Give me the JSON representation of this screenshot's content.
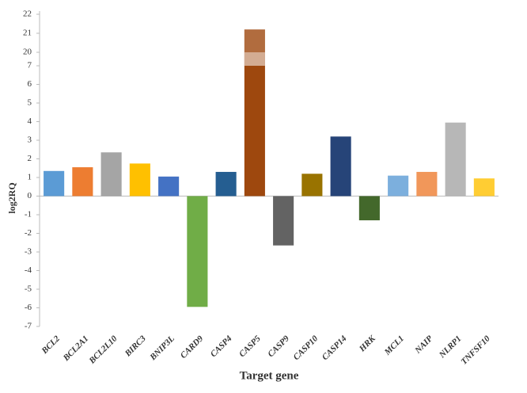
{
  "chart_data": {
    "type": "bar",
    "x_label": "Target gene",
    "y_label": "log2RQ",
    "categories": [
      "BCL2",
      "BCL2A1",
      "BCL2L10",
      "BIRC3",
      "BNIP3L",
      "CARD9",
      "CASP4",
      "CASP5",
      "CASP9",
      "CASP10",
      "CASP14",
      "HRK",
      "MCL1",
      "NAIP",
      "NLRP1",
      "TNFSF10"
    ],
    "values": [
      1.35,
      1.55,
      2.35,
      1.75,
      1.05,
      -5.95,
      1.3,
      21.2,
      -2.65,
      1.2,
      3.2,
      -1.3,
      1.1,
      1.3,
      3.95,
      0.95
    ],
    "colors": [
      "#5b9bd5",
      "#ed7d31",
      "#a5a5a5",
      "#ffc000",
      "#4472c4",
      "#70ad47",
      "#255e91",
      "#9e480e",
      "#636363",
      "#997300",
      "#264478",
      "#43682b",
      "#7cafdd",
      "#f1975a",
      "#b7b7b7",
      "#ffcd33"
    ],
    "ylim": [
      -7,
      22
    ],
    "axis_break": [
      7,
      20
    ],
    "yticks": [
      -7,
      -6,
      -5,
      -4,
      -3,
      -2,
      -1,
      0,
      1,
      2,
      3,
      4,
      5,
      6,
      7,
      20,
      21,
      22
    ],
    "grid": false
  }
}
